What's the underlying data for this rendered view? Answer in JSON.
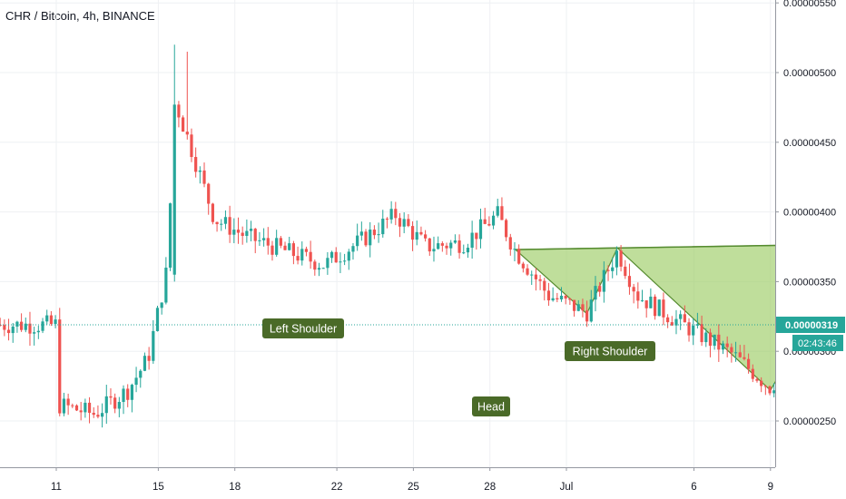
{
  "header": {
    "title": "CHR / Bitcoin, 4h, BINANCE"
  },
  "price_axis": {
    "ticks": [
      "0.00000250",
      "0.00000300",
      "0.00000350",
      "0.00000400",
      "0.00000450",
      "0.00000500",
      "0.00000550"
    ],
    "last_price_label": "0.00000319",
    "countdown_label": "02:43:46"
  },
  "time_axis": {
    "ticks": [
      "11",
      "15",
      "18",
      "22",
      "25",
      "28",
      "Jul",
      "6",
      "9"
    ]
  },
  "annotations": {
    "left_shoulder": "Left Shoulder",
    "head": "Head",
    "right_shoulder": "Right Shoulder"
  },
  "colors": {
    "up": "#26a69a",
    "down": "#ef5350",
    "pattern_fill": "#9ccc65",
    "pattern_line": "#558b2f",
    "label_bg": "#4a6a28",
    "price_line": "#26a69a"
  },
  "chart_data": {
    "type": "candlestick",
    "symbol": "CHR / Bitcoin",
    "interval": "4h",
    "exchange": "BINANCE",
    "x_labels": [
      "11",
      "15",
      "18",
      "22",
      "25",
      "28",
      "Jul",
      "6",
      "9"
    ],
    "y_ticks": [
      2.5e-07,
      3e-07,
      3.5e-07,
      4e-07,
      4.5e-07,
      5e-07,
      5.5e-07
    ],
    "ylim": [
      2e-07,
      5.6e-07
    ],
    "last_price": 3.19e-07,
    "close_path": [
      {
        "t": 0.0,
        "p": 2.62e-07
      },
      {
        "t": 1.5,
        "p": 2.55e-07
      },
      {
        "t": 2.8,
        "p": 2.72e-07
      },
      {
        "t": 3.6,
        "p": 2.95e-07
      },
      {
        "t": 4.3,
        "p": 3.55e-07
      },
      {
        "t": 4.7,
        "p": 4.77e-07
      },
      {
        "t": 5.3,
        "p": 4.45e-07
      },
      {
        "t": 6.2,
        "p": 3.95e-07
      },
      {
        "t": 7.5,
        "p": 3.82e-07
      },
      {
        "t": 9.0,
        "p": 3.72e-07
      },
      {
        "t": 10.5,
        "p": 3.62e-07
      },
      {
        "t": 12.0,
        "p": 3.8e-07
      },
      {
        "t": 13.3,
        "p": 3.98e-07
      },
      {
        "t": 14.5,
        "p": 3.75e-07
      },
      {
        "t": 16.0,
        "p": 3.78e-07
      },
      {
        "t": 17.3,
        "p": 3.98e-07
      },
      {
        "t": 18.0,
        "p": 3.72e-07
      },
      {
        "t": 19.3,
        "p": 3.4e-07
      },
      {
        "t": 20.8,
        "p": 3.28e-07
      },
      {
        "t": 22.0,
        "p": 3.72e-07
      },
      {
        "t": 22.8,
        "p": 3.4e-07
      },
      {
        "t": 24.5,
        "p": 3.2e-07
      },
      {
        "t": 26.5,
        "p": 2.98e-07
      },
      {
        "t": 28.0,
        "p": 2.74e-07
      },
      {
        "t": 28.8,
        "p": 2.95e-07
      },
      {
        "t": 30.3,
        "p": 3.3e-07
      },
      {
        "t": 31.3,
        "p": 3.7e-07
      },
      {
        "t": 32.0,
        "p": 3.72e-07
      },
      {
        "t": 32.7,
        "p": 3.52e-07
      },
      {
        "t": 33.6,
        "p": 3.2e-07
      },
      {
        "t": 34.2,
        "p": 3.19e-07
      }
    ],
    "pattern": {
      "name": "inverse head and shoulders",
      "neckline": [
        {
          "t": 18.0,
          "p": 3.73e-07
        },
        {
          "t": 38.5,
          "p": 3.79e-07
        }
      ],
      "left_shoulder_low": {
        "t": 20.8,
        "p": 3.27e-07
      },
      "head_low": {
        "t": 28.0,
        "p": 2.72e-07
      },
      "right_shoulder_low": {
        "t": 33.3,
        "p": 3.14e-07
      }
    }
  }
}
